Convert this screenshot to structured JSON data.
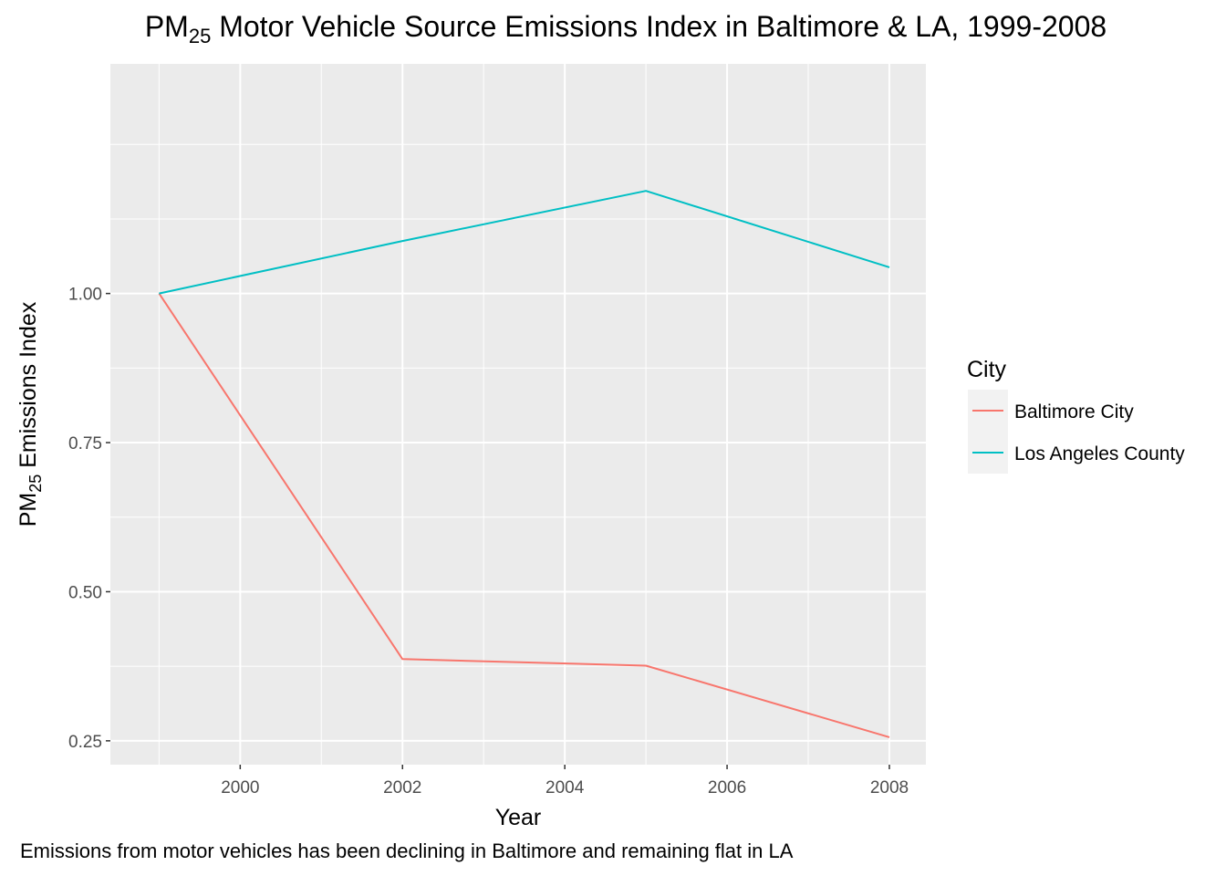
{
  "chart_data": {
    "type": "line",
    "title": {
      "prefix": "PM",
      "subscript": "25",
      "rest": " Motor Vehicle Source Emissions Index in Baltimore & LA, 1999-2008"
    },
    "xlabel": "Year",
    "ylabel": {
      "prefix": "PM",
      "subscript": "25",
      "rest": " Emissions Index"
    },
    "caption": "Emissions from motor vehicles has been declining in Baltimore and remaining flat in LA",
    "x": [
      1999,
      2002,
      2005,
      2008
    ],
    "xlim": [
      1998.4,
      2008.45
    ],
    "ylim": [
      0.21,
      1.385
    ],
    "xticks": [
      2000,
      2002,
      2004,
      2006,
      2008
    ],
    "xticks_minor": [
      1999,
      2001,
      2003,
      2005,
      2007
    ],
    "yticks": [
      0.25,
      0.5,
      0.75,
      1.0
    ],
    "ytick_labels": [
      "0.25",
      "0.50",
      "0.75",
      "1.00"
    ],
    "yticks_minor": [
      0.375,
      0.625,
      0.875,
      1.125,
      1.25
    ],
    "grid": true,
    "legend": {
      "title": "City",
      "position": "right"
    },
    "series": [
      {
        "name": "Baltimore City",
        "color": "#F8766D",
        "values": [
          1.0,
          0.387,
          0.376,
          0.256
        ]
      },
      {
        "name": "Los Angeles County",
        "color": "#00BFC4",
        "values": [
          1.0,
          1.088,
          1.172,
          1.044
        ]
      }
    ]
  }
}
